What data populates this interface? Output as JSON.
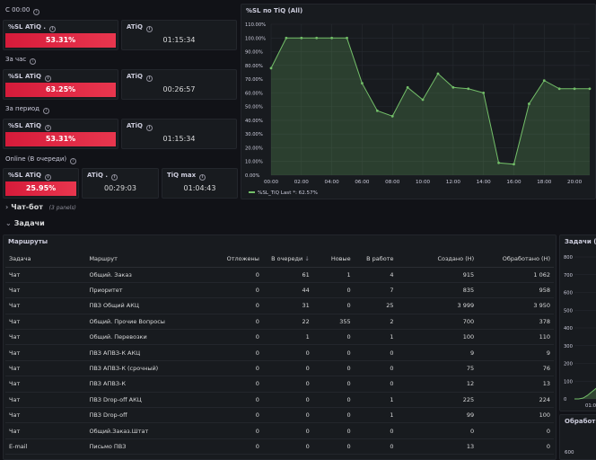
{
  "sections": {
    "current": "С 00:00",
    "hour": "За час",
    "period": "За период",
    "online": "Online (В очереди)"
  },
  "stats": {
    "current_sl_label": "%SL ATiQ .",
    "current_sl_value": "53.31%",
    "current_atiq_label": "ATiQ",
    "current_atiq_value": "01:15:34",
    "hour_sl_label": "%SL ATiQ",
    "hour_sl_value": "63.25%",
    "hour_atiq_label": "ATiQ",
    "hour_atiq_value": "00:26:57",
    "period_sl_label": "%SL ATiQ",
    "period_sl_value": "53.31%",
    "period_atiq_label": "ATiQ",
    "period_atiq_value": "01:15:34",
    "online_sl_label": "%SL ATiQ",
    "online_sl_value": "25.95%",
    "online_atiq_label": "ATiQ .",
    "online_atiq_value": "00:29:03",
    "online_tiq_label": "TiQ max",
    "online_tiq_value": "01:04:43",
    "accent_red": "#e02f44",
    "accent_green": "#73bf69"
  },
  "rows": {
    "chatbot_title": "Чат-бот",
    "chatbot_panels": "(3 panels)",
    "tasks_title": "Задачи"
  },
  "chart_data": {
    "type": "area",
    "title": "%SL по TiQ (All)",
    "x": [
      "00:00",
      "01:00",
      "02:00",
      "03:00",
      "04:00",
      "05:00",
      "06:00",
      "07:00",
      "08:00",
      "09:00",
      "10:00",
      "11:00",
      "12:00",
      "13:00",
      "14:00",
      "15:00",
      "16:00",
      "17:00",
      "18:00",
      "19:00",
      "20:00",
      "20:30"
    ],
    "x_ticks": [
      "00:00",
      "02:00",
      "04:00",
      "06:00",
      "08:00",
      "10:00",
      "12:00",
      "14:00",
      "16:00",
      "18:00",
      "20:00"
    ],
    "y_ticks": [
      "0.00%",
      "10.00%",
      "20.00%",
      "30.00%",
      "40.00%",
      "50.00%",
      "60.00%",
      "70.00%",
      "80.00%",
      "90.00%",
      "100.00%",
      "110.00%"
    ],
    "ylim": [
      0,
      110
    ],
    "series": [
      {
        "name": "%SL_TiQ",
        "color": "#73bf69",
        "values": [
          78,
          100,
          100,
          100,
          100,
          100,
          67,
          47,
          43,
          64,
          55,
          74,
          64,
          63,
          60,
          9,
          8,
          52,
          69,
          63,
          63,
          63
        ]
      }
    ],
    "legend_label": "%SL_TiQ",
    "legend_last": "Last *: 62.57%",
    "legend": "bottom-left",
    "grid": true
  },
  "routes": {
    "title": "Маршруты",
    "columns": [
      "Задача",
      "Маршрут",
      "Отложены",
      "В очереди",
      "Новые",
      "В работе",
      "Создано (Н)",
      "Обработано (Н)"
    ],
    "sort_arrow": "↓",
    "rows": [
      [
        "Чат",
        "Общий. Заказ",
        "0",
        "61",
        "1",
        "4",
        "915",
        "1 062"
      ],
      [
        "Чат",
        "Приоритет",
        "0",
        "44",
        "0",
        "7",
        "835",
        "958"
      ],
      [
        "Чат",
        "ПВЗ Общий АКЦ",
        "0",
        "31",
        "0",
        "25",
        "3 999",
        "3 950"
      ],
      [
        "Чат",
        "Общий. Прочие Вопросы",
        "0",
        "22",
        "355",
        "2",
        "700",
        "378"
      ],
      [
        "Чат",
        "Общий. Перевозки",
        "0",
        "1",
        "0",
        "1",
        "100",
        "110"
      ],
      [
        "Чат",
        "ПВЗ АПВЗ-К АКЦ",
        "0",
        "0",
        "0",
        "0",
        "9",
        "9"
      ],
      [
        "Чат",
        "ПВЗ АПВЗ-К (срочный)",
        "0",
        "0",
        "0",
        "0",
        "75",
        "76"
      ],
      [
        "Чат",
        "ПВЗ АПВЗ-К",
        "0",
        "0",
        "0",
        "0",
        "12",
        "13"
      ],
      [
        "Чат",
        "ПВЗ Drop-off АКЦ",
        "0",
        "0",
        "0",
        "1",
        "225",
        "224"
      ],
      [
        "Чат",
        "ПВЗ Drop-off",
        "0",
        "0",
        "0",
        "1",
        "99",
        "100"
      ],
      [
        "Чат",
        "Общий.Заказ.Штат",
        "0",
        "0",
        "0",
        "0",
        "0",
        "0"
      ],
      [
        "E-mail",
        "Письмо ПВЗ",
        "0",
        "0",
        "0",
        "0",
        "13",
        "0"
      ]
    ]
  },
  "side_chart": {
    "title": "Задачи (All",
    "y_ticks": [
      "800",
      "700",
      "600",
      "500",
      "400",
      "300",
      "200",
      "100",
      "0"
    ],
    "x_tick": "01:00",
    "values": [
      0,
      0,
      5,
      20,
      40,
      60,
      75
    ]
  },
  "side_chart2": {
    "title": "Обработка",
    "y_tick": "600"
  }
}
